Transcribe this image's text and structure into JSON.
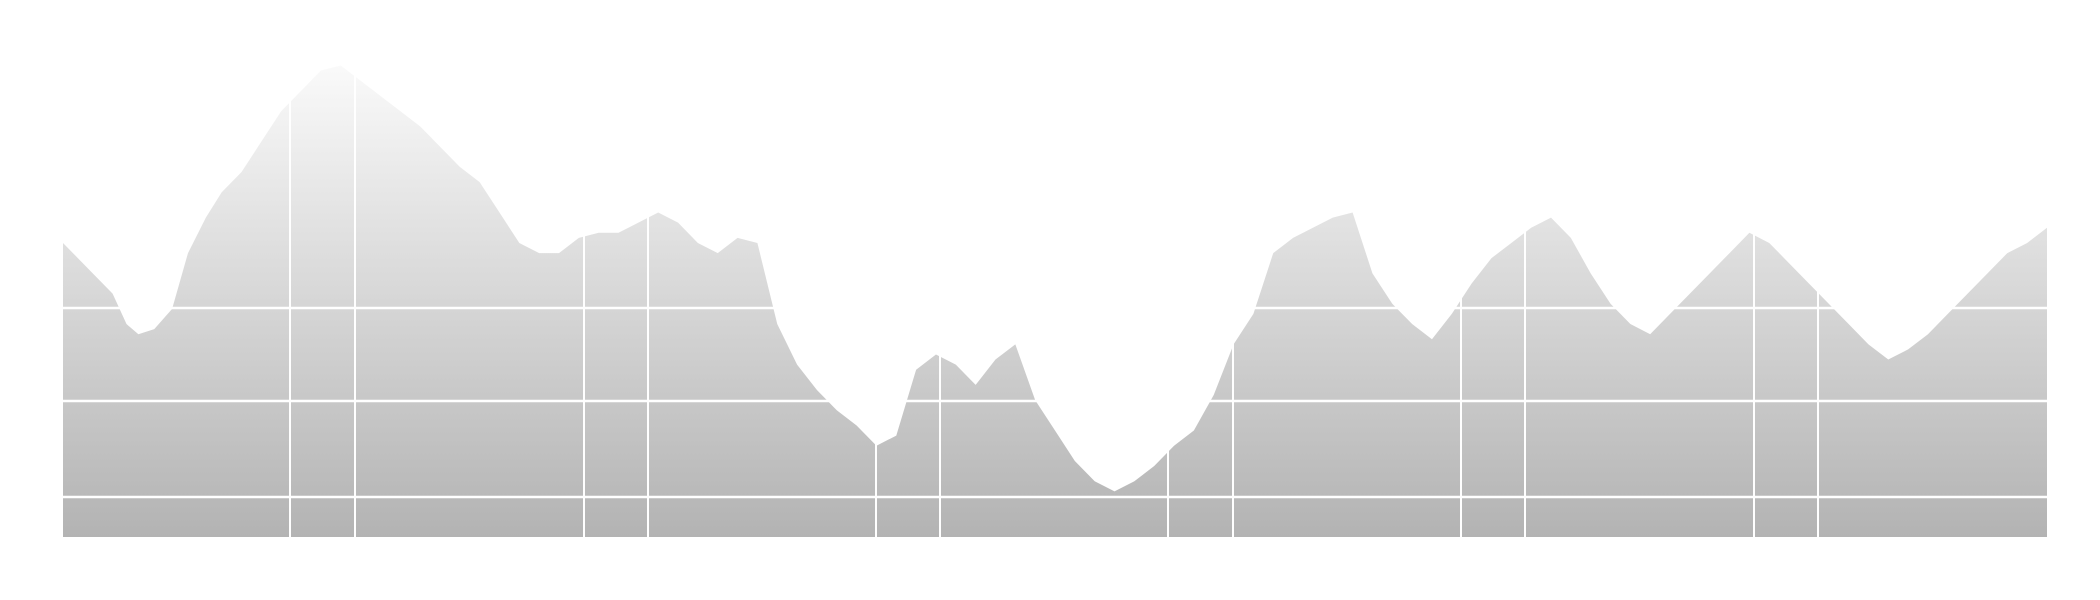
{
  "chart_data": {
    "type": "area",
    "title": "",
    "xlabel": "",
    "ylabel": "",
    "grid": true,
    "legend": "none",
    "xlim": [
      0,
      100
    ],
    "ylim": [
      0,
      100
    ],
    "colors": {
      "fill_top": "#ffffff",
      "fill_bottom": "#b3b3b3",
      "grid": "#ffffff",
      "profile_mask": "#ffffff"
    },
    "series": [
      {
        "x": [
          0,
          1.5,
          2.5,
          3.2,
          3.8,
          4.6,
          5.5,
          6.3,
          7.2,
          8,
          9,
          10,
          11,
          12,
          13,
          14,
          15,
          16,
          17,
          18,
          19,
          20,
          21,
          22,
          23,
          24,
          25,
          26,
          27,
          28,
          29,
          30,
          31,
          32,
          33,
          34,
          35,
          36,
          37,
          38,
          39,
          40,
          41,
          42,
          43,
          44,
          45,
          46,
          47,
          48,
          49,
          50,
          51,
          52,
          53,
          54,
          55,
          56,
          57,
          58,
          59,
          60,
          61,
          62,
          63,
          64,
          65,
          66,
          67,
          68,
          69,
          70,
          71,
          72,
          73,
          74,
          75,
          76,
          77,
          78,
          79,
          80,
          81,
          82,
          83,
          84,
          85,
          86,
          87,
          88,
          89,
          90,
          91,
          92,
          93,
          94,
          95,
          96,
          97,
          98,
          99,
          100
        ],
        "y": [
          58,
          52,
          48,
          42,
          40,
          41,
          45,
          56,
          63,
          68,
          72,
          78,
          84,
          88,
          92,
          93,
          90,
          87,
          84,
          81,
          77,
          73,
          70,
          64,
          58,
          56,
          56,
          59,
          60,
          60,
          62,
          64,
          62,
          58,
          56,
          59,
          58,
          42,
          34,
          29,
          25,
          22,
          18,
          20,
          33,
          36,
          34,
          30,
          35,
          38,
          27,
          21,
          15,
          11,
          9,
          11,
          14,
          18,
          21,
          28,
          38,
          44,
          56,
          59,
          61,
          63,
          64,
          52,
          46,
          42,
          39,
          44,
          50,
          55,
          58,
          61,
          63,
          59,
          52,
          46,
          42,
          40,
          44,
          48,
          52,
          56,
          60,
          58,
          54,
          50,
          46,
          42,
          38,
          35,
          37,
          40,
          44,
          48,
          52,
          56,
          58,
          61
        ]
      }
    ]
  }
}
